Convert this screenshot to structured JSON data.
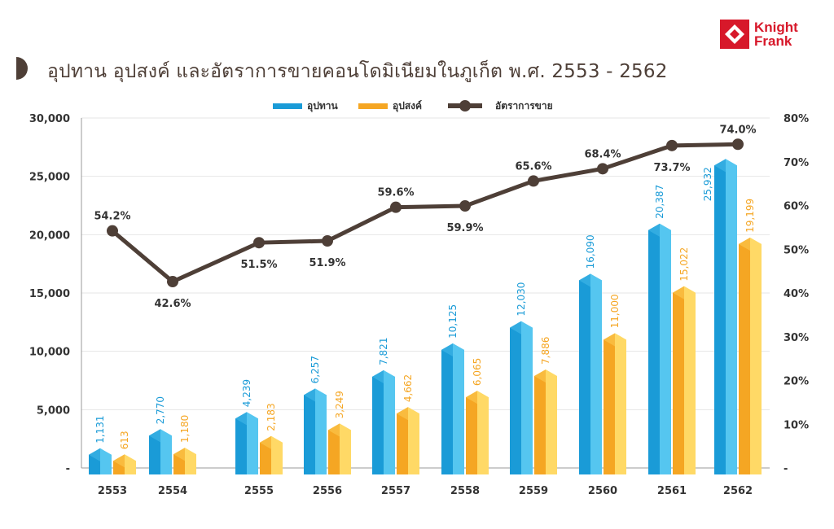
{
  "title": "อุปทาน อุปสงค์ และอัตราการขายคอนโดมิเนียมในภูเก็ต พ.ศ. 2553 - 2562",
  "logo": {
    "line1": "Knight",
    "line2": "Frank",
    "color": "#d7182a"
  },
  "chart_data": {
    "type": "bar",
    "title": "อุปทาน อุปสงค์ และอัตราการขายคอนโดมิเนียมในภูเก็ต พ.ศ. 2553 - 2562",
    "categories": [
      "2553",
      "2554",
      "2555",
      "2556",
      "2557",
      "2558",
      "2559",
      "2560",
      "2561",
      "2562"
    ],
    "series": [
      {
        "name": "อุปทาน",
        "type": "bar",
        "axis": "left",
        "color": "#1a9bd7",
        "color_light": "#55c6f0",
        "values": [
          1131,
          2770,
          4239,
          6257,
          7821,
          10125,
          12030,
          16090,
          20387,
          25932
        ],
        "labels": [
          "1,131",
          "2,770",
          "4,239",
          "6,257",
          "7,821",
          "10,125",
          "12,030",
          "16,090",
          "20,387",
          "25,932"
        ]
      },
      {
        "name": "อุปสงค์",
        "type": "bar",
        "axis": "left",
        "color": "#f5a623",
        "color_light": "#ffd966",
        "values": [
          613,
          1180,
          2183,
          3249,
          4662,
          6065,
          7886,
          11000,
          15022,
          19199
        ],
        "labels": [
          "613",
          "1,180",
          "2,183",
          "3,249",
          "4,662",
          "6,065",
          "7,886",
          "11,000",
          "15,022",
          "19,199"
        ]
      },
      {
        "name": "อัตราการขาย",
        "type": "line",
        "axis": "right",
        "color": "#4e3f37",
        "values": [
          54.2,
          42.6,
          51.5,
          51.9,
          59.6,
          59.9,
          65.6,
          68.4,
          73.7,
          74.0
        ],
        "labels": [
          "54.2%",
          "42.6%",
          "51.5%",
          "51.9%",
          "59.6%",
          "59.9%",
          "65.6%",
          "68.4%",
          "73.7%",
          "74.0%"
        ],
        "label_positions": [
          "above",
          "below",
          "below",
          "below",
          "above",
          "below",
          "above",
          "above",
          "below",
          "above"
        ]
      }
    ],
    "yleft": {
      "ylim": [
        0,
        30000
      ],
      "ticks": [
        "-",
        "5,000",
        "10,000",
        "15,000",
        "20,000",
        "25,000",
        "30,000"
      ]
    },
    "yright": {
      "ylim": [
        0,
        80
      ],
      "ticks": [
        "-",
        "10%",
        "20%",
        "30%",
        "40%",
        "50%",
        "60%",
        "70%",
        "80%"
      ]
    },
    "grid": true,
    "legend": "top-center"
  }
}
